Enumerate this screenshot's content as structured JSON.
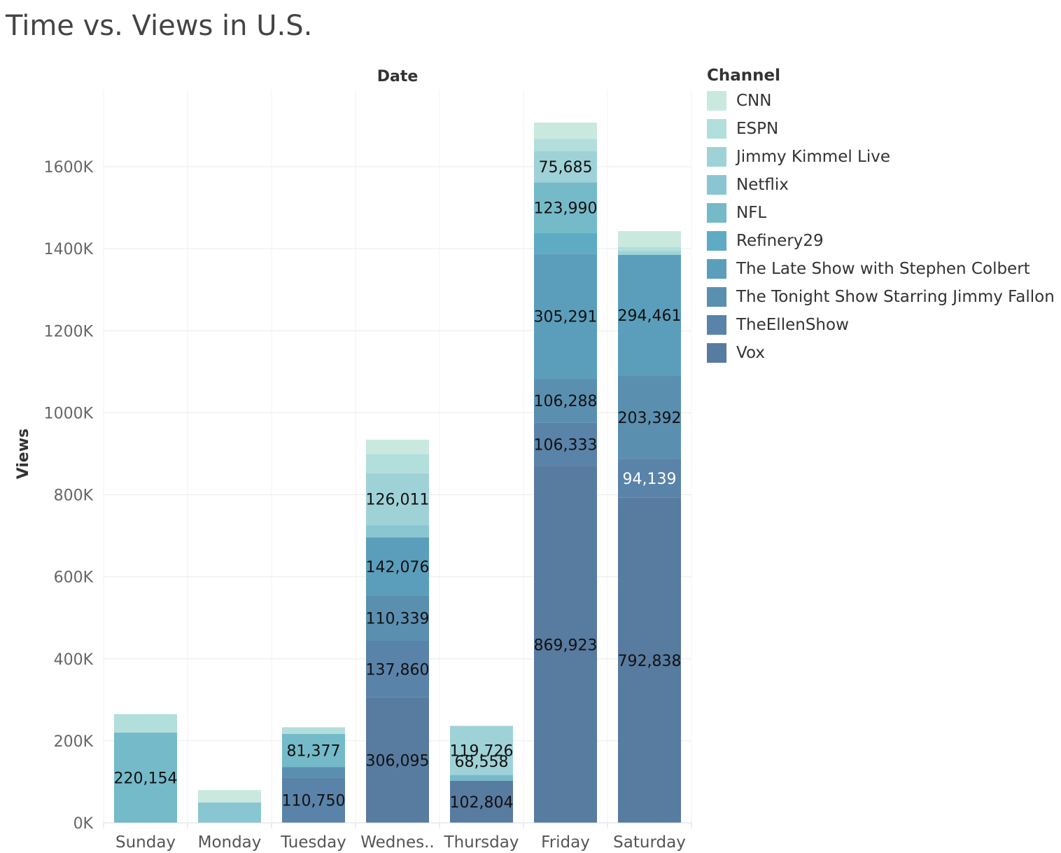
{
  "chart_data": {
    "type": "bar",
    "stacked": true,
    "title": "Time vs. Views in U.S.",
    "column_header": "Date",
    "ylabel": "Views",
    "ylim": [
      0,
      1800000
    ],
    "yticks": [
      0,
      200000,
      400000,
      600000,
      800000,
      1000000,
      1200000,
      1400000,
      1600000
    ],
    "ytick_labels": [
      "0K",
      "200K",
      "400K",
      "600K",
      "800K",
      "1000K",
      "1200K",
      "1400K",
      "1600K"
    ],
    "categories": [
      "Sunday",
      "Monday",
      "Tuesday",
      "Wednes..",
      "Thursday",
      "Friday",
      "Saturday"
    ],
    "legend_title": "Channel",
    "legend_placement": "right",
    "grid": true,
    "series": [
      {
        "name": "CNN",
        "color": "#c9e9df",
        "values": [
          0,
          30000,
          0,
          35000,
          0,
          40000,
          38000
        ]
      },
      {
        "name": "ESPN",
        "color": "#b2dedc",
        "values": [
          45000,
          0,
          16000,
          47000,
          0,
          30000,
          10000
        ]
      },
      {
        "name": "Jimmy Kimmel Live",
        "color": "#9fd2d7",
        "values": [
          0,
          0,
          0,
          126011,
          119726,
          75685,
          10000
        ]
      },
      {
        "name": "Netflix",
        "color": "#8ac6d1",
        "values": [
          0,
          50000,
          0,
          30000,
          0,
          0,
          0
        ]
      },
      {
        "name": "NFL",
        "color": "#74bac9",
        "values": [
          220154,
          0,
          81377,
          0,
          14000,
          123990,
          0
        ]
      },
      {
        "name": "Refinery29",
        "color": "#5fabc3",
        "values": [
          0,
          0,
          0,
          0,
          0,
          50000,
          0
        ]
      },
      {
        "name": "The Late Show with Stephen Colbert",
        "color": "#5b9ebb",
        "values": [
          0,
          0,
          0,
          142076,
          0,
          305291,
          294461
        ]
      },
      {
        "name": "The Tonight Show Starring Jimmy Fallon",
        "color": "#5a8fb0",
        "values": [
          0,
          0,
          25000,
          110339,
          0,
          106288,
          203392
        ]
      },
      {
        "name": "TheEllenShow",
        "color": "#5a83a9",
        "values": [
          0,
          0,
          110750,
          137860,
          0,
          106333,
          94139
        ]
      },
      {
        "name": "Vox",
        "color": "#587ba0",
        "values": [
          0,
          0,
          0,
          306095,
          102804,
          869923,
          792838
        ]
      }
    ],
    "data_labels": [
      {
        "category": "Sunday",
        "series": "NFL",
        "text": "220,154"
      },
      {
        "category": "Tuesday",
        "series": "NFL",
        "text": "81,377"
      },
      {
        "category": "Tuesday",
        "series": "TheEllenShow",
        "text": "110,750"
      },
      {
        "category": "Wednes..",
        "series": "Jimmy Kimmel Live",
        "text": "126,011"
      },
      {
        "category": "Wednes..",
        "series": "The Late Show with Stephen Colbert",
        "text": "142,076"
      },
      {
        "category": "Wednes..",
        "series": "The Tonight Show Starring Jimmy Fallon",
        "text": "110,339"
      },
      {
        "category": "Wednes..",
        "series": "TheEllenShow",
        "text": "137,860"
      },
      {
        "category": "Wednes..",
        "series": "Vox",
        "text": "306,095"
      },
      {
        "category": "Thursday",
        "series": "Jimmy Kimmel Live",
        "text": "119,726"
      },
      {
        "category": "Thursday",
        "series": "Vox",
        "text": "102,804"
      },
      {
        "category": "Friday",
        "series": "Jimmy Kimmel Live",
        "text": "75,685"
      },
      {
        "category": "Friday",
        "series": "NFL",
        "text": "123,990"
      },
      {
        "category": "Friday",
        "series": "The Late Show with Stephen Colbert",
        "text": "305,291"
      },
      {
        "category": "Friday",
        "series": "The Tonight Show Starring Jimmy Fallon",
        "text": "106,288"
      },
      {
        "category": "Friday",
        "series": "TheEllenShow",
        "text": "106,333"
      },
      {
        "category": "Friday",
        "series": "Vox",
        "text": "869,923"
      },
      {
        "category": "Saturday",
        "series": "The Late Show with Stephen Colbert",
        "text": "294,461"
      },
      {
        "category": "Saturday",
        "series": "The Tonight Show Starring Jimmy Fallon",
        "text": "203,392"
      },
      {
        "category": "Saturday",
        "series": "TheEllenShow",
        "text": "94,139",
        "light": true
      },
      {
        "category": "Saturday",
        "series": "Vox",
        "text": "792,838"
      }
    ],
    "extra_labels": [
      {
        "category": "Thursday",
        "text": "68,558",
        "value_center": 150000
      }
    ]
  }
}
